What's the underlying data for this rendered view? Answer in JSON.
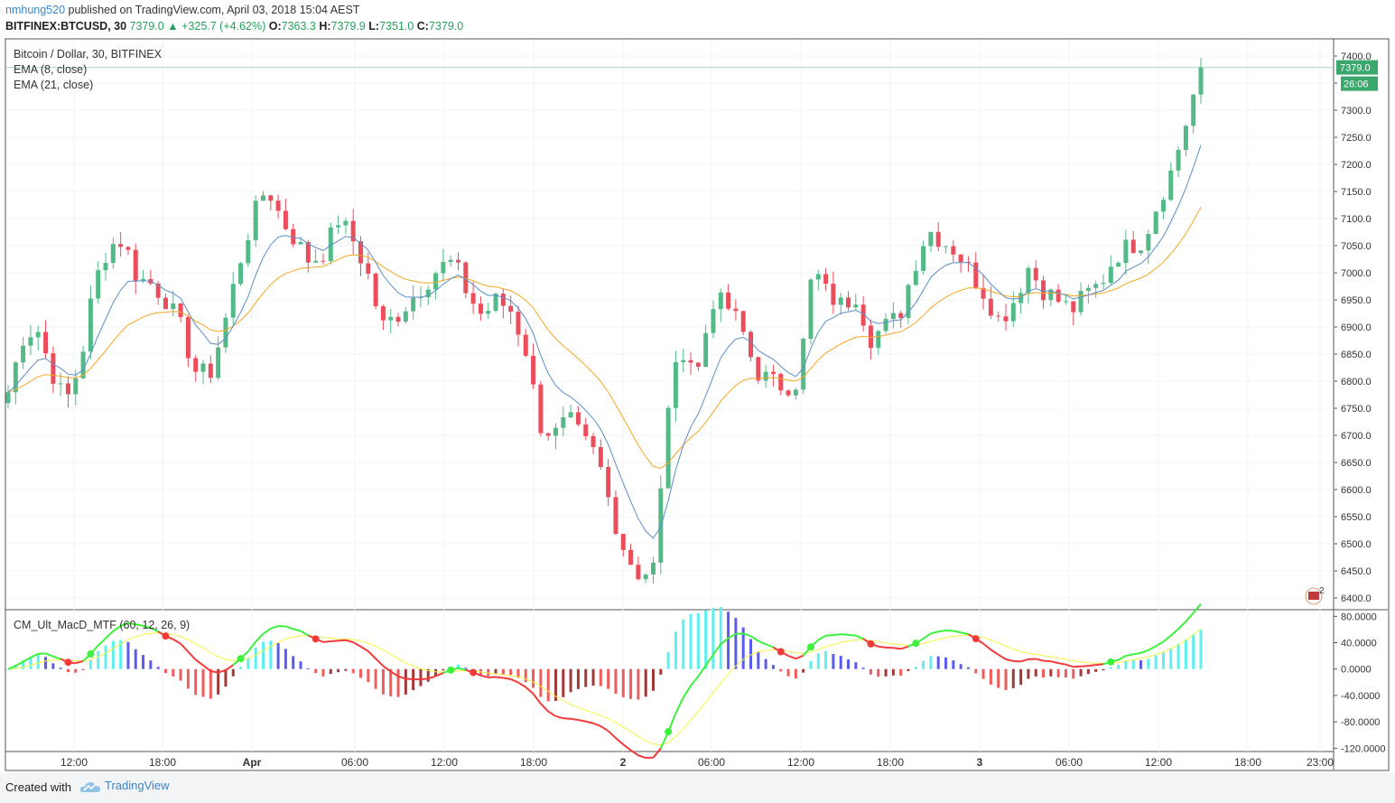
{
  "header": {
    "user": "nmhung520",
    "published": "published on TradingView.com, April 03, 2018 15:04 AEST",
    "symbol": "BITFINEX:BTCUSD, 30",
    "last": "7379.0",
    "change": "+325.7 (+4.62%)",
    "o_label": "O:",
    "o": "7363.3",
    "h_label": "H:",
    "h": "7379.9",
    "l_label": "L:",
    "l": "7351.0",
    "c_label": "C:",
    "c": "7379.0"
  },
  "legend": {
    "title": "Bitcoin / Dollar, 30, BITFINEX",
    "ema8": "EMA (8, close)",
    "ema21": "EMA (21, close)",
    "macd": "CM_Ult_MacD_MTF (60, 12, 26, 9)"
  },
  "price_tags": {
    "last": "7379.0",
    "countdown": "26:06"
  },
  "alert_badge": "2",
  "footer": {
    "created": "Created with",
    "brand": "TradingView"
  },
  "colors": {
    "up": "#53b987",
    "down": "#eb4d5c",
    "ema8": "#5b8ec8",
    "ema21": "#f5a623",
    "macd_up": "#3cf23c",
    "macd_down": "#f23a3a",
    "signal": "#f5f542",
    "hist_cyan": "#5ef0f0",
    "hist_blue": "#5b5bf0",
    "hist_red": "#f05b5b",
    "hist_maroon": "#a03a3a"
  },
  "chart_data": [
    {
      "type": "candlestick",
      "title": "Bitcoin / Dollar, 30, BITFINEX",
      "ylim": [
        6380,
        7430
      ],
      "y_ticks": [
        "7400.0",
        "7350.0",
        "7300.0",
        "7250.0",
        "7200.0",
        "7150.0",
        "7100.0",
        "7050.0",
        "7000.0",
        "6950.0",
        "6900.0",
        "6850.0",
        "6800.0",
        "6750.0",
        "6700.0",
        "6650.0",
        "6600.0",
        "6550.0",
        "6500.0",
        "6450.0",
        "6400.0"
      ],
      "x_ticks": [
        "12:00",
        "18:00",
        "Apr",
        "06:00",
        "12:00",
        "18:00",
        "2",
        "06:00",
        "12:00",
        "18:00",
        "3",
        "06:00",
        "12:00",
        "18:00",
        "23:00"
      ],
      "last_price": 7379.0,
      "ohlc_close_path": [
        6780,
        6880,
        6900,
        6820,
        6760,
        6830,
        6980,
        7050,
        7060,
        6990,
        6980,
        6950,
        6900,
        6820,
        6810,
        6900,
        7010,
        7100,
        7160,
        7100,
        7060,
        7020,
        7040,
        7100,
        7060,
        7000,
        6900,
        6920,
        6950,
        6980,
        7010,
        7020,
        6960,
        6920,
        6950,
        6930,
        6860,
        6720,
        6700,
        6730,
        6690,
        6660,
        6560,
        6480,
        6440,
        6460,
        6780,
        6860,
        6820,
        6950,
        6940,
        6900,
        6820,
        6800,
        6790,
        6800,
        7010,
        6960,
        6940,
        6960,
        6880,
        6900,
        6920,
        7010,
        7080,
        7060,
        7040,
        7000,
        6960,
        6910,
        6950,
        7010,
        6970,
        6950,
        6930,
        6960,
        6980,
        7030,
        7050,
        7060,
        7130,
        7190,
        7280,
        7379
      ]
    },
    {
      "type": "line",
      "title": "CM_Ult_MacD_MTF (60, 12, 26, 9)",
      "ylim": [
        -125,
        90
      ],
      "y_ticks": [
        "80.0000",
        "40.0000",
        "0.0000",
        "-40.0000",
        "-80.0000",
        "-120.0000"
      ]
    }
  ]
}
